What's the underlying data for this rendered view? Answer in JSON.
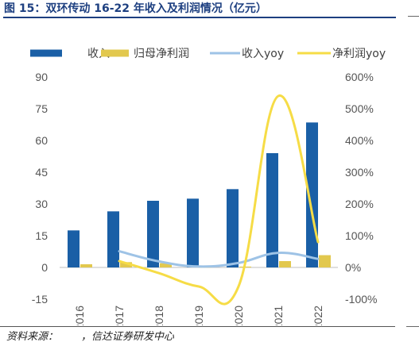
{
  "figure": {
    "title": "图 15：双环传动 16-22 年收入及利润情况（亿元）",
    "source": "资料来源：       ，信达证券研发中心"
  },
  "chart_data": {
    "type": "bar",
    "categories": [
      "2016",
      "2017",
      "2018",
      "2019",
      "2020",
      "2021",
      "2022"
    ],
    "series": [
      {
        "name": "收入",
        "kind": "bar",
        "axis": "left",
        "color": "#1a5fa6",
        "values": [
          17.5,
          26.5,
          31.5,
          32.5,
          37,
          54,
          68.5
        ]
      },
      {
        "name": "归母净利润",
        "kind": "bar",
        "axis": "left",
        "color": "#e2c84e",
        "values": [
          1.5,
          2.5,
          2,
          0.3,
          0.4,
          3,
          5.8
        ]
      },
      {
        "name": "收入yoy",
        "kind": "line",
        "axis": "right",
        "color": "#9ec3e6",
        "values": [
          null,
          51,
          19,
          3,
          14,
          46,
          27
        ]
      },
      {
        "name": "净利润yoy",
        "kind": "line",
        "axis": "right",
        "color": "#f6dc46",
        "values": [
          null,
          20,
          -18,
          -60,
          -60,
          540,
          80
        ]
      }
    ],
    "y_left": {
      "min": -15,
      "max": 90,
      "ticks": [
        "-15",
        "0",
        "15",
        "30",
        "45",
        "60",
        "75",
        "90"
      ]
    },
    "y_right": {
      "min": -100,
      "max": 600,
      "ticks": [
        "-100%",
        "0%",
        "100%",
        "200%",
        "300%",
        "400%",
        "500%",
        "600%"
      ]
    },
    "grid": false,
    "legend_position": "top"
  }
}
